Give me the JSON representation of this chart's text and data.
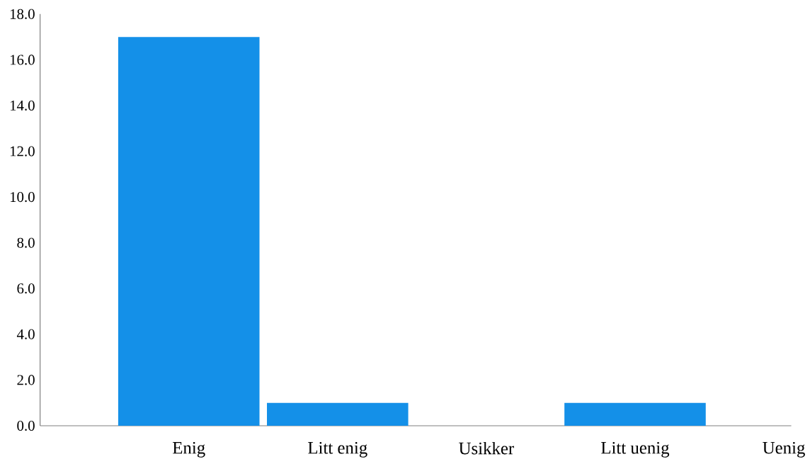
{
  "chart_data": {
    "type": "bar",
    "categories": [
      "Enig",
      "Litt enig",
      "Usikker",
      "Litt uenig",
      "Uenig"
    ],
    "values": [
      17,
      1,
      0,
      1,
      0
    ],
    "color": "#1490e8",
    "ylim": [
      0,
      18
    ],
    "yticks": [
      {
        "value": 0,
        "label": "0.0"
      },
      {
        "value": 2,
        "label": "2.0"
      },
      {
        "value": 4,
        "label": "4.0"
      },
      {
        "value": 6,
        "label": "6.0"
      },
      {
        "value": 8,
        "label": "8.0"
      },
      {
        "value": 10,
        "label": "10.0"
      },
      {
        "value": 12,
        "label": "12.0"
      },
      {
        "value": 14,
        "label": "14.0"
      },
      {
        "value": 16,
        "label": "16.0"
      },
      {
        "value": 18,
        "label": "18.0"
      }
    ],
    "grid": false
  }
}
